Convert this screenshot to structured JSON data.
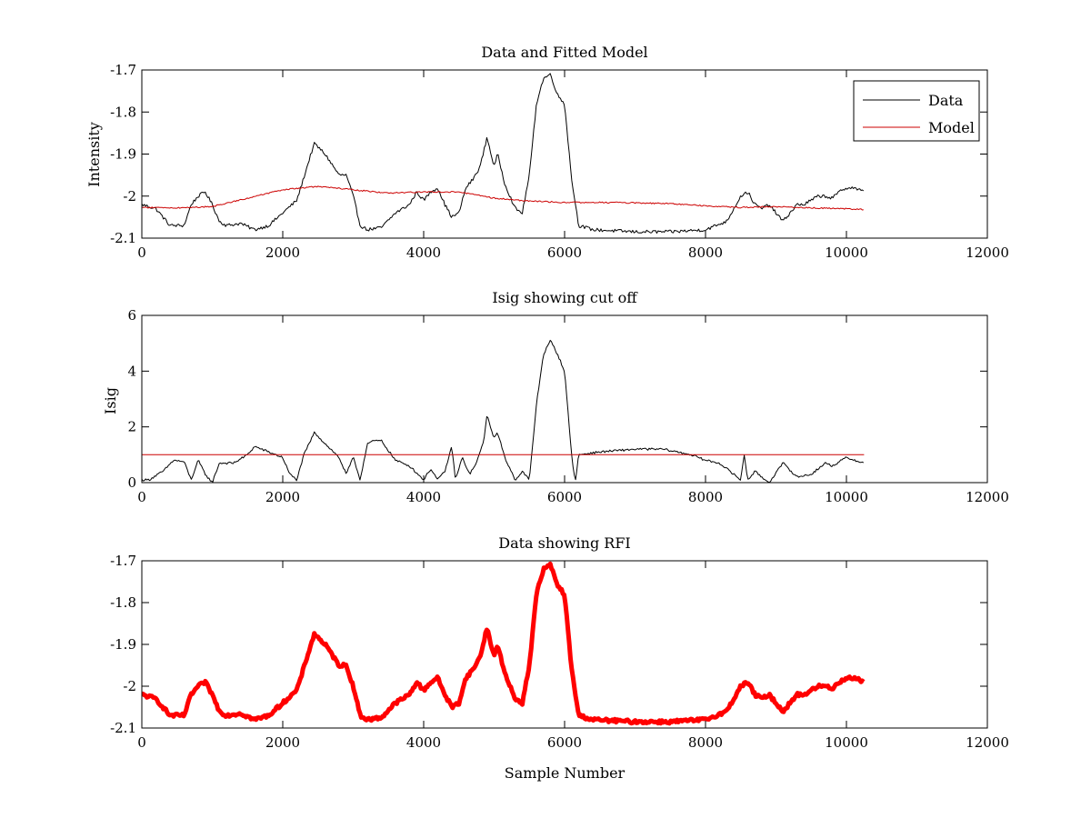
{
  "figure": {
    "background": "#ffffff"
  },
  "chart_data": [
    {
      "type": "line",
      "title": "Data and Fitted Model",
      "xlabel": "",
      "ylabel": "Intensity",
      "xlim": [
        0,
        12000
      ],
      "ylim": [
        -2.1,
        -1.7
      ],
      "xticks": [
        "0",
        "2000",
        "4000",
        "6000",
        "8000",
        "10000",
        "12000"
      ],
      "yticks": [
        "-2.1",
        "-2",
        "-1.9",
        "-1.8",
        "-1.7"
      ],
      "grid": false,
      "legend": {
        "placement": "top-right",
        "entries": [
          "Data",
          "Model"
        ]
      },
      "series": [
        {
          "name": "Data",
          "color": "#000000",
          "noise": 0.004,
          "x": [
            0,
            200,
            400,
            600,
            700,
            800,
            900,
            1000,
            1100,
            1200,
            1400,
            1600,
            1800,
            2000,
            2200,
            2400,
            2450,
            2600,
            2800,
            2900,
            3000,
            3100,
            3200,
            3400,
            3600,
            3800,
            3900,
            4000,
            4100,
            4200,
            4300,
            4400,
            4500,
            4600,
            4700,
            4800,
            4900,
            5000,
            5050,
            5150,
            5300,
            5400,
            5500,
            5600,
            5700,
            5800,
            5900,
            6000,
            6100,
            6200,
            6400,
            7000,
            7500,
            8000,
            8300,
            8500,
            8600,
            8700,
            8800,
            8900,
            9000,
            9100,
            9200,
            9300,
            9400,
            9600,
            9700,
            9800,
            9900,
            10000,
            10100,
            10250
          ],
          "y": [
            -2.02,
            -2.03,
            -2.07,
            -2.07,
            -2.02,
            -2.0,
            -1.99,
            -2.02,
            -2.06,
            -2.07,
            -2.065,
            -2.08,
            -2.07,
            -2.04,
            -2.01,
            -1.9,
            -1.875,
            -1.9,
            -1.95,
            -1.95,
            -2.0,
            -2.07,
            -2.08,
            -2.075,
            -2.04,
            -2.02,
            -1.99,
            -2.01,
            -1.99,
            -1.98,
            -2.02,
            -2.05,
            -2.04,
            -1.98,
            -1.96,
            -1.93,
            -1.86,
            -1.93,
            -1.9,
            -1.97,
            -2.03,
            -2.04,
            -1.95,
            -1.78,
            -1.72,
            -1.71,
            -1.76,
            -1.78,
            -1.96,
            -2.07,
            -2.08,
            -2.085,
            -2.085,
            -2.08,
            -2.06,
            -2.0,
            -1.99,
            -2.02,
            -2.03,
            -2.02,
            -2.04,
            -2.06,
            -2.04,
            -2.02,
            -2.02,
            -2.0,
            -2.0,
            -2.005,
            -1.99,
            -1.98,
            -1.98,
            -1.99
          ]
        },
        {
          "name": "Model",
          "color": "#cc0000",
          "noise": 0.0015,
          "x": [
            0,
            500,
            1000,
            1500,
            2000,
            2500,
            3000,
            3500,
            4000,
            4500,
            5000,
            5500,
            6000,
            6500,
            7000,
            7500,
            8000,
            8500,
            9000,
            9500,
            10000,
            10250
          ],
          "y": [
            -2.027,
            -2.028,
            -2.025,
            -2.005,
            -1.985,
            -1.977,
            -1.985,
            -1.993,
            -1.99,
            -1.99,
            -2.005,
            -2.012,
            -2.015,
            -2.015,
            -2.016,
            -2.018,
            -2.023,
            -2.027,
            -2.025,
            -2.028,
            -2.03,
            -2.032
          ]
        }
      ]
    },
    {
      "type": "line",
      "title": "Isig showing cut off",
      "xlabel": "",
      "ylabel": "Isig",
      "xlim": [
        0,
        12000
      ],
      "ylim": [
        0,
        6
      ],
      "xticks": [
        "0",
        "2000",
        "4000",
        "6000",
        "8000",
        "10000",
        "12000"
      ],
      "yticks": [
        "0",
        "2",
        "4",
        "6"
      ],
      "grid": false,
      "series": [
        {
          "color": "#000000",
          "noise": 0.04,
          "x": [
            0,
            100,
            300,
            450,
            600,
            700,
            800,
            900,
            1000,
            1100,
            1300,
            1500,
            1600,
            1800,
            2000,
            2100,
            2200,
            2300,
            2450,
            2600,
            2800,
            2900,
            3000,
            3100,
            3200,
            3300,
            3400,
            3600,
            3800,
            4000,
            4100,
            4200,
            4300,
            4400,
            4450,
            4550,
            4650,
            4750,
            4850,
            4900,
            5000,
            5050,
            5150,
            5300,
            5400,
            5500,
            5600,
            5700,
            5800,
            5900,
            6000,
            6100,
            6150,
            6200,
            6500,
            7000,
            7400,
            7800,
            8000,
            8200,
            8400,
            8500,
            8550,
            8600,
            8700,
            8900,
            9100,
            9300,
            9500,
            9700,
            9800,
            10000,
            10250
          ],
          "y": [
            0.1,
            0.1,
            0.4,
            0.8,
            0.75,
            0.1,
            0.8,
            0.3,
            0.0,
            0.7,
            0.7,
            1.0,
            1.3,
            1.1,
            0.9,
            0.3,
            0.1,
            1.0,
            1.8,
            1.4,
            0.9,
            0.3,
            0.9,
            0.1,
            1.4,
            1.5,
            1.5,
            0.8,
            0.6,
            0.1,
            0.5,
            0.1,
            0.4,
            1.3,
            0.1,
            0.9,
            0.3,
            0.7,
            1.5,
            2.4,
            1.6,
            1.8,
            0.9,
            0.1,
            0.4,
            0.1,
            2.8,
            4.6,
            5.1,
            4.6,
            4.0,
            1.0,
            0.0,
            1.0,
            1.1,
            1.2,
            1.2,
            1.0,
            0.8,
            0.7,
            0.3,
            0.1,
            1.0,
            0.1,
            0.4,
            0.0,
            0.7,
            0.2,
            0.3,
            0.7,
            0.6,
            0.9,
            0.7
          ]
        },
        {
          "color": "#cc0000",
          "noise": 0,
          "x": [
            0,
            10250
          ],
          "y": [
            1.0,
            1.0
          ]
        }
      ]
    },
    {
      "type": "line",
      "title": "Data showing RFI",
      "xlabel": "Sample Number",
      "ylabel": "",
      "xlim": [
        0,
        12000
      ],
      "ylim": [
        -2.1,
        -1.7
      ],
      "xticks": [
        "0",
        "2000",
        "4000",
        "6000",
        "8000",
        "10000",
        "12000"
      ],
      "yticks": [
        "-2.1",
        "-2",
        "-1.9",
        "-1.8",
        "-1.7"
      ],
      "grid": false,
      "series": [
        {
          "color": "#ff0000",
          "noise": 0.004,
          "x": [
            0,
            200,
            400,
            600,
            700,
            800,
            900,
            1000,
            1100,
            1200,
            1400,
            1600,
            1800,
            2000,
            2200,
            2400,
            2450,
            2600,
            2800,
            2900,
            3000,
            3100,
            3200,
            3400,
            3600,
            3800,
            3900,
            4000,
            4100,
            4200,
            4300,
            4400,
            4500,
            4600,
            4700,
            4800,
            4900,
            5000,
            5050,
            5150,
            5300,
            5400,
            5500,
            5600,
            5700,
            5800,
            5900,
            6000,
            6100,
            6200,
            6400,
            7000,
            7500,
            8000,
            8300,
            8500,
            8600,
            8700,
            8800,
            8900,
            9000,
            9100,
            9200,
            9300,
            9400,
            9600,
            9700,
            9800,
            9900,
            10000,
            10100,
            10250
          ],
          "y": [
            -2.02,
            -2.03,
            -2.07,
            -2.07,
            -2.02,
            -2.0,
            -1.99,
            -2.02,
            -2.06,
            -2.07,
            -2.065,
            -2.08,
            -2.07,
            -2.04,
            -2.01,
            -1.9,
            -1.875,
            -1.9,
            -1.95,
            -1.95,
            -2.0,
            -2.07,
            -2.08,
            -2.075,
            -2.04,
            -2.02,
            -1.99,
            -2.01,
            -1.99,
            -1.98,
            -2.02,
            -2.05,
            -2.04,
            -1.98,
            -1.96,
            -1.93,
            -1.86,
            -1.93,
            -1.9,
            -1.97,
            -2.03,
            -2.04,
            -1.95,
            -1.78,
            -1.72,
            -1.71,
            -1.76,
            -1.78,
            -1.96,
            -2.07,
            -2.08,
            -2.085,
            -2.085,
            -2.08,
            -2.06,
            -2.0,
            -1.99,
            -2.02,
            -2.03,
            -2.02,
            -2.04,
            -2.06,
            -2.04,
            -2.02,
            -2.02,
            -2.0,
            -2.0,
            -2.005,
            -1.99,
            -1.98,
            -1.98,
            -1.99
          ]
        }
      ]
    }
  ]
}
